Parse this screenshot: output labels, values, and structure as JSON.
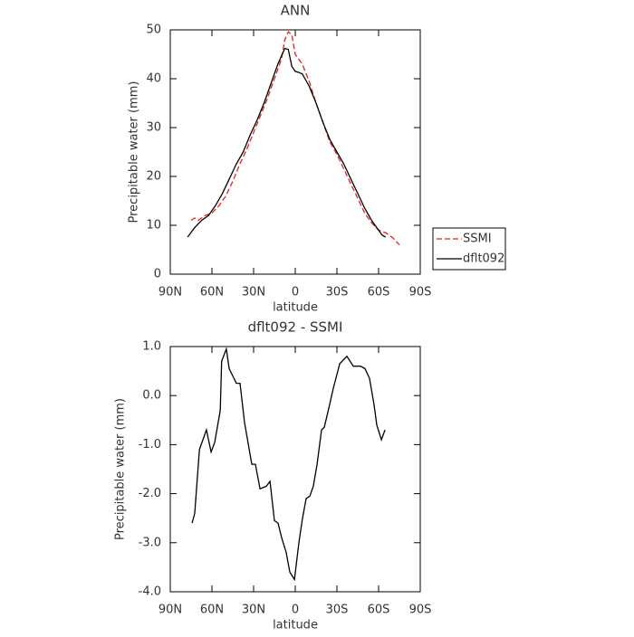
{
  "chart_data": [
    {
      "type": "line",
      "title": "ANN",
      "xlabel": "latitude",
      "ylabel": "Precipitable water (mm)",
      "xlim": [
        90,
        -90
      ],
      "xticks": [
        {
          "value": 90,
          "label": "90N"
        },
        {
          "value": 60,
          "label": "60N"
        },
        {
          "value": 30,
          "label": "30N"
        },
        0,
        {
          "value": -30,
          "label": "30S"
        },
        {
          "value": -60,
          "label": "60S"
        },
        {
          "value": -90,
          "label": "90S"
        }
      ],
      "ylim": [
        0,
        50
      ],
      "yticks": [
        0,
        10,
        20,
        30,
        40,
        50
      ],
      "legend": "right",
      "series": [
        {
          "name": "SSMI",
          "color": "#e8201e",
          "linestyle": "dashed",
          "x": [
            75,
            72.5,
            70,
            65,
            60,
            55,
            50,
            45,
            40,
            35,
            30,
            25,
            20,
            15,
            10,
            7.5,
            5,
            2.5,
            0,
            -2.5,
            -5,
            -10,
            -15,
            -20,
            -25,
            -30,
            -35,
            -40,
            -45,
            -50,
            -55,
            -60,
            -65,
            -70,
            -75
          ],
          "values": [
            11,
            11.5,
            11,
            12,
            12.5,
            14,
            16,
            19,
            22.5,
            25.5,
            29,
            32.5,
            36,
            40,
            44,
            48,
            49.6,
            49,
            45,
            44,
            43,
            39.5,
            35,
            31,
            27,
            24.5,
            21.5,
            18.5,
            15.5,
            12.5,
            10.5,
            9,
            8.5,
            7.5,
            6
          ]
        },
        {
          "name": "dflt092",
          "color": "#000000",
          "linestyle": "solid",
          "x": [
            77.5,
            72.5,
            67.5,
            62.5,
            57.5,
            52.5,
            47.5,
            42.5,
            37.5,
            32.5,
            27.5,
            22.5,
            17.5,
            12.5,
            7.5,
            5,
            2.5,
            0,
            -2.5,
            -5,
            -10,
            -15,
            -20,
            -25,
            -30,
            -35,
            -40,
            -45,
            -50,
            -55,
            -60,
            -62.5,
            -65
          ],
          "values": [
            7.6,
            9.5,
            11,
            12,
            14,
            16.5,
            19.5,
            22.5,
            25,
            28.5,
            31.5,
            35,
            39,
            43,
            46.2,
            46,
            42.5,
            41.5,
            41.3,
            41,
            38.5,
            35,
            31,
            27.5,
            25,
            22.5,
            19.5,
            16.5,
            13.5,
            11,
            9,
            8,
            7.6
          ]
        }
      ]
    },
    {
      "type": "line",
      "title": "dflt092 - SSMI",
      "xlabel": "latitude",
      "ylabel": "Precipitable water (mm)",
      "xlim": [
        90,
        -90
      ],
      "xticks": [
        {
          "value": 90,
          "label": "90N"
        },
        {
          "value": 60,
          "label": "60N"
        },
        {
          "value": 30,
          "label": "30N"
        },
        0,
        {
          "value": -30,
          "label": "30S"
        },
        {
          "value": -60,
          "label": "60S"
        },
        {
          "value": -90,
          "label": "90S"
        }
      ],
      "ylim": [
        -4,
        1
      ],
      "yticks": [
        {
          "value": 1,
          "label": "1.0"
        },
        {
          "value": 0,
          "label": "0.0"
        },
        {
          "value": -1,
          "label": "-1.0"
        },
        {
          "value": -2,
          "label": "-2.0"
        },
        {
          "value": -3,
          "label": "-3.0"
        },
        {
          "value": -4,
          "label": "-4.0"
        }
      ],
      "color": "#000000",
      "x": [
        74.3,
        72.4,
        69,
        64,
        60.6,
        58,
        54,
        53,
        49.6,
        47.6,
        42.4,
        39.8,
        36.5,
        31.3,
        28.7,
        25.4,
        20.9,
        18.2,
        15,
        12.4,
        9.8,
        6.5,
        3.9,
        0.6,
        -2.6,
        -5.2,
        -7.8,
        -10.5,
        -13,
        -15.7,
        -18.9,
        -20.9,
        -24.2,
        -27.4,
        -32,
        -37.2,
        -41.8,
        -47,
        -50.2,
        -53.5,
        -56.8,
        -58.7,
        -62,
        -64.6
      ],
      "values": [
        -2.6,
        -2.4,
        -1.1,
        -0.7,
        -1.15,
        -0.95,
        -0.3,
        0.7,
        0.95,
        0.55,
        0.25,
        0.25,
        -0.55,
        -1.4,
        -1.4,
        -1.9,
        -1.85,
        -1.75,
        -2.55,
        -2.6,
        -2.9,
        -3.2,
        -3.6,
        -3.75,
        -3.0,
        -2.5,
        -2.1,
        -2.05,
        -1.85,
        -1.4,
        -0.7,
        -0.65,
        -0.25,
        0.15,
        0.65,
        0.8,
        0.6,
        0.6,
        0.55,
        0.35,
        -0.2,
        -0.6,
        -0.9,
        -0.7
      ]
    }
  ]
}
